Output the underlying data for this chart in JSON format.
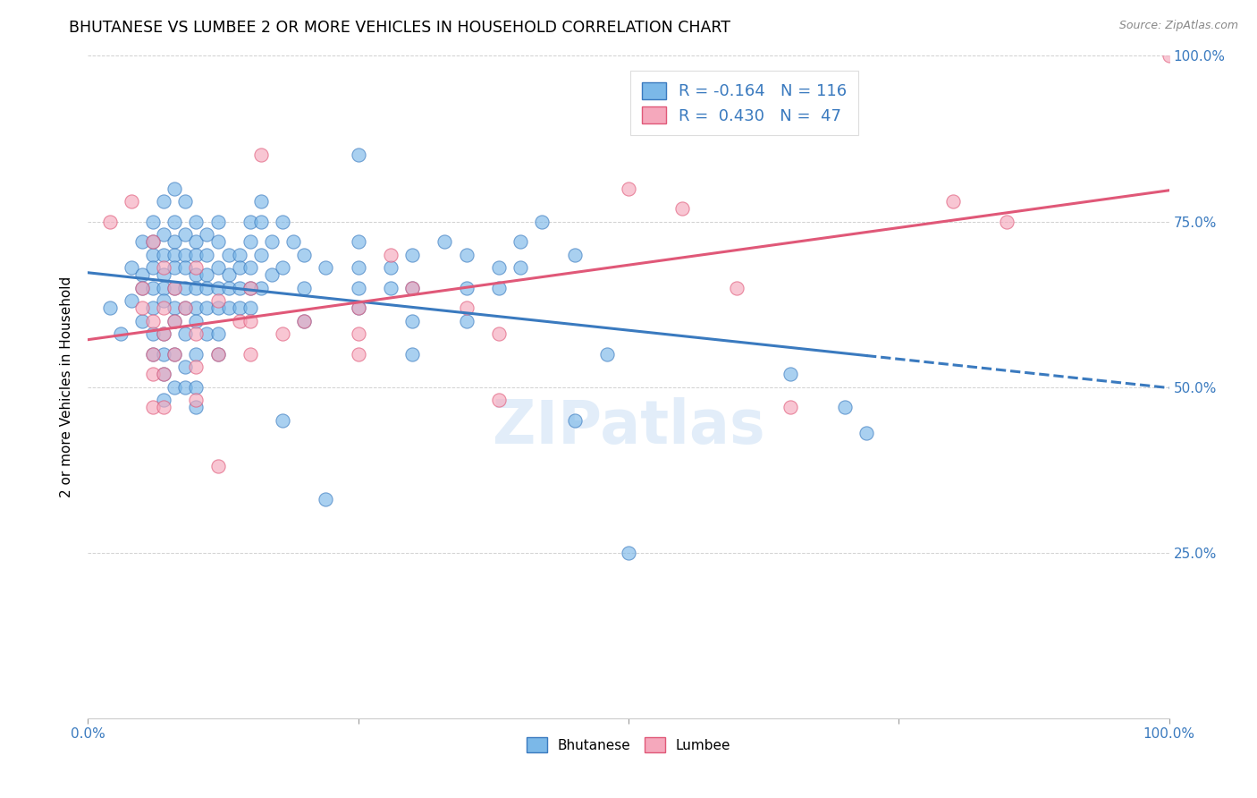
{
  "title": "BHUTANESE VS LUMBEE 2 OR MORE VEHICLES IN HOUSEHOLD CORRELATION CHART",
  "source": "Source: ZipAtlas.com",
  "ylabel": "2 or more Vehicles in Household",
  "x_tick_vals": [
    0,
    0.25,
    0.5,
    0.75,
    1.0
  ],
  "x_tick_labels_sparse": {
    "0": "0.0%",
    "1.0": "100.0%"
  },
  "y_tick_vals": [
    0,
    0.25,
    0.5,
    0.75,
    1.0
  ],
  "y_tick_labels_right": [
    "",
    "25.0%",
    "50.0%",
    "75.0%",
    "100.0%"
  ],
  "bhutanese_R": -0.164,
  "bhutanese_N": 116,
  "lumbee_R": 0.43,
  "lumbee_N": 47,
  "blue_color": "#7bb8e8",
  "pink_color": "#f5a8bc",
  "blue_line_color": "#3a7abf",
  "pink_line_color": "#e05878",
  "blue_scatter": [
    [
      0.02,
      0.62
    ],
    [
      0.03,
      0.58
    ],
    [
      0.04,
      0.68
    ],
    [
      0.04,
      0.63
    ],
    [
      0.05,
      0.72
    ],
    [
      0.05,
      0.67
    ],
    [
      0.05,
      0.65
    ],
    [
      0.05,
      0.6
    ],
    [
      0.06,
      0.75
    ],
    [
      0.06,
      0.72
    ],
    [
      0.06,
      0.7
    ],
    [
      0.06,
      0.68
    ],
    [
      0.06,
      0.65
    ],
    [
      0.06,
      0.62
    ],
    [
      0.06,
      0.58
    ],
    [
      0.06,
      0.55
    ],
    [
      0.07,
      0.78
    ],
    [
      0.07,
      0.73
    ],
    [
      0.07,
      0.7
    ],
    [
      0.07,
      0.67
    ],
    [
      0.07,
      0.65
    ],
    [
      0.07,
      0.63
    ],
    [
      0.07,
      0.58
    ],
    [
      0.07,
      0.55
    ],
    [
      0.07,
      0.52
    ],
    [
      0.07,
      0.48
    ],
    [
      0.08,
      0.8
    ],
    [
      0.08,
      0.75
    ],
    [
      0.08,
      0.72
    ],
    [
      0.08,
      0.7
    ],
    [
      0.08,
      0.68
    ],
    [
      0.08,
      0.65
    ],
    [
      0.08,
      0.62
    ],
    [
      0.08,
      0.6
    ],
    [
      0.08,
      0.55
    ],
    [
      0.08,
      0.5
    ],
    [
      0.09,
      0.78
    ],
    [
      0.09,
      0.73
    ],
    [
      0.09,
      0.7
    ],
    [
      0.09,
      0.68
    ],
    [
      0.09,
      0.65
    ],
    [
      0.09,
      0.62
    ],
    [
      0.09,
      0.58
    ],
    [
      0.09,
      0.53
    ],
    [
      0.09,
      0.5
    ],
    [
      0.1,
      0.75
    ],
    [
      0.1,
      0.72
    ],
    [
      0.1,
      0.7
    ],
    [
      0.1,
      0.67
    ],
    [
      0.1,
      0.65
    ],
    [
      0.1,
      0.62
    ],
    [
      0.1,
      0.6
    ],
    [
      0.1,
      0.55
    ],
    [
      0.1,
      0.5
    ],
    [
      0.1,
      0.47
    ],
    [
      0.11,
      0.73
    ],
    [
      0.11,
      0.7
    ],
    [
      0.11,
      0.67
    ],
    [
      0.11,
      0.65
    ],
    [
      0.11,
      0.62
    ],
    [
      0.11,
      0.58
    ],
    [
      0.12,
      0.75
    ],
    [
      0.12,
      0.72
    ],
    [
      0.12,
      0.68
    ],
    [
      0.12,
      0.65
    ],
    [
      0.12,
      0.62
    ],
    [
      0.12,
      0.58
    ],
    [
      0.12,
      0.55
    ],
    [
      0.13,
      0.7
    ],
    [
      0.13,
      0.67
    ],
    [
      0.13,
      0.65
    ],
    [
      0.13,
      0.62
    ],
    [
      0.14,
      0.7
    ],
    [
      0.14,
      0.68
    ],
    [
      0.14,
      0.65
    ],
    [
      0.14,
      0.62
    ],
    [
      0.15,
      0.75
    ],
    [
      0.15,
      0.72
    ],
    [
      0.15,
      0.68
    ],
    [
      0.15,
      0.65
    ],
    [
      0.15,
      0.62
    ],
    [
      0.16,
      0.78
    ],
    [
      0.16,
      0.75
    ],
    [
      0.16,
      0.7
    ],
    [
      0.16,
      0.65
    ],
    [
      0.17,
      0.72
    ],
    [
      0.17,
      0.67
    ],
    [
      0.18,
      0.75
    ],
    [
      0.18,
      0.68
    ],
    [
      0.18,
      0.45
    ],
    [
      0.19,
      0.72
    ],
    [
      0.2,
      0.7
    ],
    [
      0.2,
      0.65
    ],
    [
      0.2,
      0.6
    ],
    [
      0.22,
      0.68
    ],
    [
      0.22,
      0.33
    ],
    [
      0.25,
      0.85
    ],
    [
      0.25,
      0.72
    ],
    [
      0.25,
      0.68
    ],
    [
      0.25,
      0.65
    ],
    [
      0.25,
      0.62
    ],
    [
      0.28,
      0.68
    ],
    [
      0.28,
      0.65
    ],
    [
      0.3,
      0.7
    ],
    [
      0.3,
      0.65
    ],
    [
      0.3,
      0.6
    ],
    [
      0.3,
      0.55
    ],
    [
      0.33,
      0.72
    ],
    [
      0.35,
      0.7
    ],
    [
      0.35,
      0.65
    ],
    [
      0.35,
      0.6
    ],
    [
      0.38,
      0.68
    ],
    [
      0.38,
      0.65
    ],
    [
      0.4,
      0.72
    ],
    [
      0.4,
      0.68
    ],
    [
      0.42,
      0.75
    ],
    [
      0.45,
      0.7
    ],
    [
      0.45,
      0.45
    ],
    [
      0.48,
      0.55
    ],
    [
      0.5,
      0.25
    ],
    [
      0.65,
      0.52
    ],
    [
      0.7,
      0.47
    ],
    [
      0.72,
      0.43
    ]
  ],
  "pink_scatter": [
    [
      0.02,
      0.75
    ],
    [
      0.04,
      0.78
    ],
    [
      0.05,
      0.65
    ],
    [
      0.05,
      0.62
    ],
    [
      0.06,
      0.72
    ],
    [
      0.06,
      0.6
    ],
    [
      0.06,
      0.55
    ],
    [
      0.06,
      0.52
    ],
    [
      0.06,
      0.47
    ],
    [
      0.07,
      0.68
    ],
    [
      0.07,
      0.62
    ],
    [
      0.07,
      0.58
    ],
    [
      0.07,
      0.52
    ],
    [
      0.07,
      0.47
    ],
    [
      0.08,
      0.65
    ],
    [
      0.08,
      0.6
    ],
    [
      0.08,
      0.55
    ],
    [
      0.09,
      0.62
    ],
    [
      0.1,
      0.68
    ],
    [
      0.1,
      0.58
    ],
    [
      0.1,
      0.53
    ],
    [
      0.1,
      0.48
    ],
    [
      0.12,
      0.63
    ],
    [
      0.12,
      0.55
    ],
    [
      0.12,
      0.38
    ],
    [
      0.14,
      0.6
    ],
    [
      0.15,
      0.65
    ],
    [
      0.15,
      0.6
    ],
    [
      0.15,
      0.55
    ],
    [
      0.16,
      0.85
    ],
    [
      0.18,
      0.58
    ],
    [
      0.2,
      0.6
    ],
    [
      0.25,
      0.62
    ],
    [
      0.25,
      0.58
    ],
    [
      0.25,
      0.55
    ],
    [
      0.28,
      0.7
    ],
    [
      0.3,
      0.65
    ],
    [
      0.35,
      0.62
    ],
    [
      0.38,
      0.58
    ],
    [
      0.38,
      0.48
    ],
    [
      0.5,
      0.8
    ],
    [
      0.55,
      0.77
    ],
    [
      0.6,
      0.65
    ],
    [
      0.65,
      0.47
    ],
    [
      0.8,
      0.78
    ],
    [
      0.85,
      0.75
    ],
    [
      1.0,
      1.0
    ]
  ],
  "watermark": "ZIPatlas",
  "figsize": [
    14.06,
    8.92
  ],
  "dpi": 100
}
